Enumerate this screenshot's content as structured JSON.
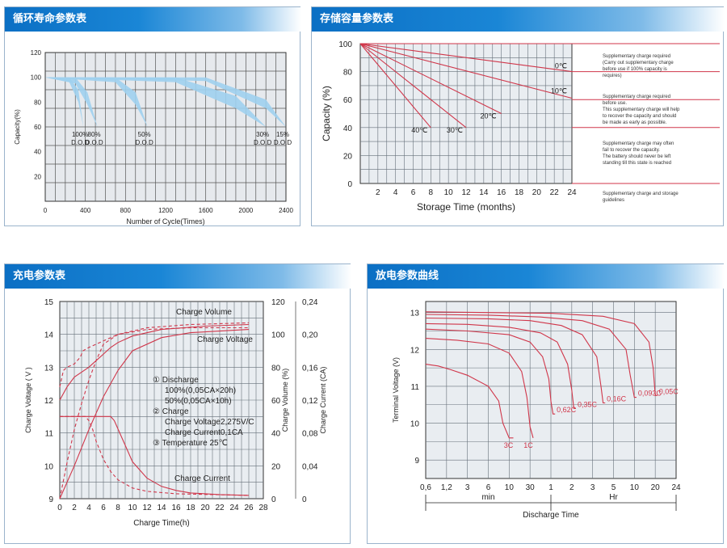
{
  "panels": {
    "cycle": {
      "title": "循环寿命参数表"
    },
    "storage": {
      "title": "存储容量参数表"
    },
    "charge": {
      "title": "充电参数表"
    },
    "discharge": {
      "title": "放电参数曲线"
    }
  },
  "chart_data": [
    {
      "id": "cycle",
      "type": "area",
      "xlabel": "Number of Cycle(Times)",
      "ylabel": "Capacity(%)",
      "xlim": [
        0,
        2400
      ],
      "ylim": [
        0,
        120
      ],
      "xticks": [
        "0",
        "400",
        "800",
        "1200",
        "1600",
        "2000",
        "2400"
      ],
      "yticks": [
        "20",
        "40",
        "60",
        "80",
        "100",
        "120"
      ],
      "grid": true,
      "bands": [
        {
          "dod_pct": "100%",
          "dod": "D.O.D",
          "x": [
            0,
            240,
            330,
            380
          ],
          "y_outer": [
            100,
            100,
            90,
            60
          ],
          "y_inner": [
            100,
            96,
            80,
            60
          ]
        },
        {
          "dod_pct": "80%",
          "dod": "D.O.D",
          "x": [
            0,
            300,
            420,
            520
          ],
          "y_outer": [
            100,
            100,
            88,
            60
          ],
          "y_inner": [
            100,
            95,
            78,
            60
          ]
        },
        {
          "dod_pct": "50%",
          "dod": "D.O.D",
          "x": [
            0,
            700,
            900,
            1020
          ],
          "y_outer": [
            100,
            100,
            88,
            60
          ],
          "y_inner": [
            100,
            96,
            78,
            60
          ]
        },
        {
          "dod_pct": "30%",
          "dod": "D.O.D",
          "x": [
            0,
            1300,
            1900,
            2200
          ],
          "y_outer": [
            100,
            100,
            85,
            60
          ],
          "y_inner": [
            100,
            96,
            75,
            60
          ]
        },
        {
          "dod_pct": "15%",
          "dod": "D.O.D",
          "x": [
            0,
            1600,
            2200,
            2400
          ],
          "y_outer": [
            100,
            100,
            82,
            60
          ],
          "y_inner": [
            100,
            97,
            75,
            60
          ]
        }
      ]
    },
    {
      "id": "storage",
      "type": "line",
      "xlabel": "Storage Time (months)",
      "ylabel": "Capacity  (%)",
      "xlim": [
        0,
        24
      ],
      "ylim": [
        0,
        100
      ],
      "xticks": [
        "2",
        "4",
        "6",
        "8",
        "10",
        "12",
        "14",
        "16",
        "18",
        "20",
        "22",
        "24"
      ],
      "yticks": [
        "0",
        "20",
        "40",
        "60",
        "80",
        "100"
      ],
      "grid": true,
      "series": [
        {
          "name": "0℃",
          "x": [
            0,
            24
          ],
          "y": [
            100,
            80
          ]
        },
        {
          "name": "10℃",
          "x": [
            0,
            24
          ],
          "y": [
            100,
            61
          ]
        },
        {
          "name": "20℃",
          "x": [
            0,
            16
          ],
          "y": [
            100,
            50
          ]
        },
        {
          "name": "30℃",
          "x": [
            0,
            12
          ],
          "y": [
            100,
            40
          ]
        },
        {
          "name": "40℃",
          "x": [
            0,
            8
          ],
          "y": [
            100,
            40
          ]
        }
      ],
      "notes": [
        {
          "lines": [
            "Supplementary charge required",
            "(Carry out supplementary charge",
            "before use if 100% capacity is",
            "requires)"
          ]
        },
        {
          "lines": [
            "Supplementary charge required",
            "before use.",
            "This supplementary charge will help",
            "to recover the capacity and should",
            "be made  as early as possible."
          ]
        },
        {
          "lines": [
            "Supplementary charge may often",
            "fail to recover the capacity.",
            "The battery should never be left",
            "standing till this state is reached"
          ]
        },
        {
          "lines": [
            "Supplementary charge and storage",
            "guidelines"
          ]
        }
      ],
      "note_bounds": [
        80,
        60,
        40,
        0
      ]
    },
    {
      "id": "charge",
      "type": "line",
      "xlabel": "Charge Time(h)",
      "ylabel": "Charge Voltage  ( V )",
      "y2label": "Charge Volume  (%)",
      "y3label": "Charge Current (CA)",
      "xlim": [
        0,
        28
      ],
      "ylim": [
        9,
        15
      ],
      "y2lim": [
        0,
        120
      ],
      "y3lim": [
        0,
        0.24
      ],
      "xticks": [
        "0",
        "2",
        "4",
        "6",
        "8",
        "10",
        "12",
        "14",
        "16",
        "18",
        "20",
        "22",
        "24",
        "26",
        "28"
      ],
      "yticks": [
        "9",
        "10",
        "11",
        "12",
        "13",
        "14",
        "15"
      ],
      "y2ticks": [
        "0",
        "20",
        "40",
        "60",
        "80",
        "100",
        "120"
      ],
      "y3ticks": [
        "0",
        "0,04",
        "0,08",
        "0,12",
        "0,16",
        "0,20",
        "0,24"
      ],
      "grid": true,
      "curve_labels": [
        "Charge Volume",
        "Charge Voltage",
        "Charge Current"
      ],
      "legend": [
        "① Discharge",
        "100%(0,05CA×20h)",
        "50%(0,05CA×10h)",
        "② Charge",
        "Charge Voltage2,275V/C",
        "Charge Current0,1CA",
        "③ Temperature 25℃"
      ],
      "series": [
        {
          "name": "Charge Volume",
          "axis": "y2",
          "style": "solid",
          "x": [
            0,
            2,
            4,
            6,
            8,
            10,
            14,
            18,
            22,
            26
          ],
          "y": [
            0,
            20,
            42,
            62,
            78,
            90,
            98,
            101,
            102,
            103
          ]
        },
        {
          "name": "Charge Volume",
          "axis": "y2",
          "style": "dashed",
          "x": [
            0,
            1,
            2,
            3,
            4,
            5,
            6,
            8,
            12,
            18,
            26
          ],
          "y": [
            0,
            22,
            42,
            58,
            72,
            84,
            94,
            100,
            103,
            104,
            104
          ]
        },
        {
          "name": "Charge Voltage",
          "axis": "y",
          "style": "solid",
          "x": [
            0,
            1,
            2,
            3,
            4,
            5,
            6,
            7,
            8,
            10,
            14,
            20,
            26
          ],
          "y": [
            12.0,
            12.4,
            12.7,
            12.85,
            13.0,
            13.2,
            13.4,
            13.6,
            13.75,
            13.95,
            14.15,
            14.25,
            14.3
          ]
        },
        {
          "name": "Charge Voltage",
          "axis": "y",
          "style": "dashed",
          "x": [
            0,
            0.5,
            1,
            2,
            2.8,
            3.2,
            4,
            6,
            8,
            12,
            18,
            26
          ],
          "y": [
            12.4,
            12.9,
            13.0,
            13.1,
            13.3,
            13.5,
            13.6,
            13.8,
            14.0,
            14.2,
            14.3,
            14.35
          ]
        },
        {
          "name": "Charge Current",
          "axis": "y3",
          "style": "solid",
          "x": [
            0,
            7,
            7.5,
            8,
            9,
            10,
            12,
            14,
            16,
            18,
            22,
            26
          ],
          "y": [
            0.1,
            0.1,
            0.095,
            0.085,
            0.065,
            0.045,
            0.025,
            0.015,
            0.01,
            0.007,
            0.005,
            0.004
          ]
        },
        {
          "name": "Charge Current",
          "axis": "y3",
          "style": "dashed",
          "x": [
            0,
            3.5,
            4,
            4.5,
            5,
            6,
            7,
            8,
            10,
            12,
            16,
            26
          ],
          "y": [
            0.1,
            0.1,
            0.095,
            0.085,
            0.07,
            0.048,
            0.033,
            0.023,
            0.013,
            0.009,
            0.006,
            0.004
          ]
        }
      ]
    },
    {
      "id": "discharge",
      "type": "line",
      "xlabel": "Discharge Time",
      "ylabel": "Terminal Voltage  (V)",
      "ylim": [
        8.5,
        13.3
      ],
      "xticks": [
        "0,6",
        "1,2",
        "3",
        "6",
        "10",
        "30",
        "1",
        "2",
        "3",
        "5",
        "10",
        "20",
        "24"
      ],
      "yticks": [
        "9",
        "10",
        "11",
        "12",
        "13"
      ],
      "xgroups": [
        "min",
        "Hr"
      ],
      "grid": true,
      "series": [
        {
          "name": "3C",
          "x": [
            0,
            0.6,
            1.2,
            2.0,
            3.0,
            3.5,
            3.7,
            4.0,
            4.2
          ],
          "y": [
            11.6,
            11.55,
            11.45,
            11.3,
            11.0,
            10.6,
            10.0,
            9.6,
            9.6
          ]
        },
        {
          "name": "1C",
          "x": [
            0,
            1.5,
            3.0,
            4.0,
            4.6,
            4.85,
            5.0,
            5.15
          ],
          "y": [
            12.3,
            12.25,
            12.15,
            11.9,
            11.4,
            10.7,
            9.9,
            9.6
          ]
        },
        {
          "name": "0,62C",
          "x": [
            0,
            2.0,
            4.0,
            5.0,
            5.6,
            5.9,
            6.0,
            6.1,
            6.2
          ],
          "y": [
            12.55,
            12.5,
            12.4,
            12.2,
            11.8,
            11.2,
            10.6,
            10.25,
            10.25
          ]
        },
        {
          "name": "0,35C",
          "x": [
            0,
            2.0,
            4.0,
            5.5,
            6.3,
            6.8,
            7.0,
            7.1,
            7.2
          ],
          "y": [
            12.7,
            12.68,
            12.6,
            12.45,
            12.2,
            11.6,
            10.9,
            10.4,
            10.4
          ]
        },
        {
          "name": "0,16C",
          "x": [
            0,
            3.0,
            5.0,
            6.5,
            7.5,
            8.2,
            8.4,
            8.5,
            8.6
          ],
          "y": [
            12.85,
            12.83,
            12.78,
            12.65,
            12.4,
            11.8,
            11.0,
            10.55,
            10.55
          ]
        },
        {
          "name": "0,093C",
          "x": [
            0,
            3.0,
            5.5,
            7.5,
            8.8,
            9.6,
            9.8,
            10.0,
            10.1
          ],
          "y": [
            12.95,
            12.93,
            12.88,
            12.78,
            12.55,
            12.0,
            11.3,
            10.7,
            10.7
          ]
        },
        {
          "name": "0,05C",
          "x": [
            0,
            3.0,
            6.0,
            8.5,
            10.0,
            10.7,
            10.9,
            11.0,
            11.1
          ],
          "y": [
            13.02,
            13.0,
            12.98,
            12.9,
            12.7,
            12.2,
            11.5,
            10.75,
            10.75
          ]
        }
      ]
    }
  ]
}
